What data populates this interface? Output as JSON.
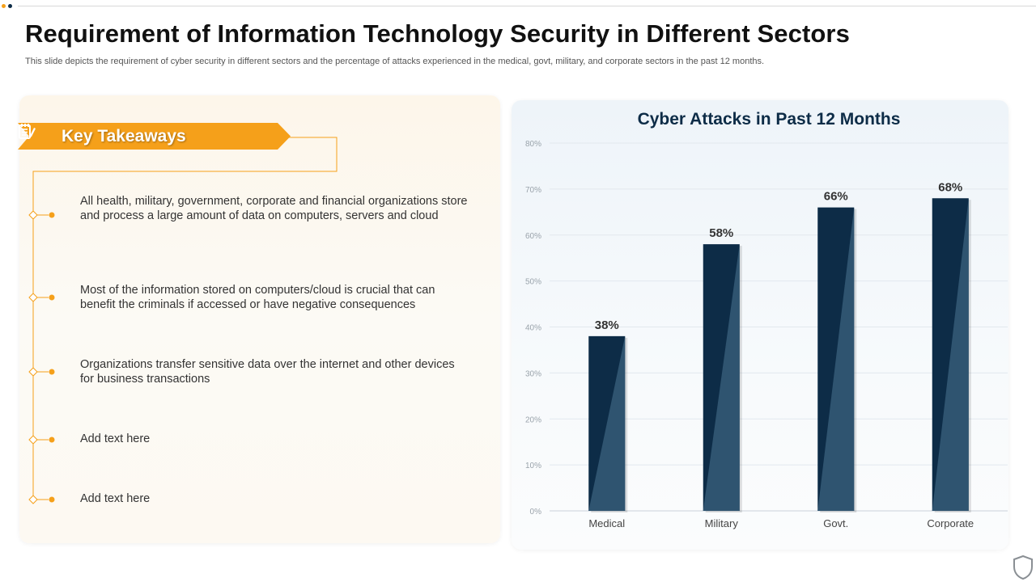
{
  "header": {
    "title": "Requirement of Information Technology Security in Different Sectors",
    "subtitle": "This slide depicts the requirement of cyber security in different sectors and the percentage of attacks experienced in the medical, govt, military, and corporate sectors in the past 12 months."
  },
  "takeaways": {
    "heading": "Key Takeaways",
    "heading_icon": "notepad-pencil-icon",
    "items": [
      "All health, military, government, corporate and financial organizations store and process a large amount of data on computers, servers and cloud",
      "Most of the information stored on computers/cloud is crucial that can benefit the criminals if accessed or have negative consequences",
      "Organizations transfer sensitive data over the internet and other devices for business transactions",
      "Add text here",
      "Add text here"
    ]
  },
  "colors": {
    "accent": "#f5a01a",
    "navy": "#0d2c47",
    "bar_shade": "#2f5470"
  },
  "chart_data": {
    "type": "bar",
    "title": "Cyber Attacks in Past 12 Months",
    "categories": [
      "Medical",
      "Military",
      "Govt.",
      "Corporate"
    ],
    "values": [
      38,
      58,
      66,
      68
    ],
    "value_labels": [
      "38%",
      "58%",
      "66%",
      "68%"
    ],
    "ylim": [
      0,
      80
    ],
    "y_ticks": [
      "0%",
      "10%",
      "20%",
      "30%",
      "40%",
      "50%",
      "60%",
      "70%",
      "80%"
    ],
    "grid": true,
    "legend": "none"
  },
  "footer": {
    "icon": "shield-icon"
  }
}
